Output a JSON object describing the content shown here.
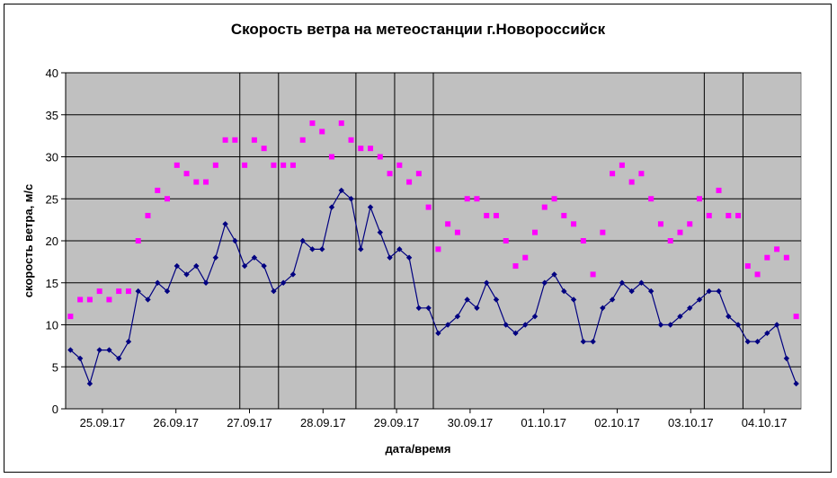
{
  "chart_data": {
    "type": "line",
    "title": "Скорость ветра на метеостанции г.Новороссийск",
    "xlabel": "дата/время",
    "ylabel": "скорость ветра, м/с",
    "ylim": [
      0,
      40
    ],
    "yticks": [
      "0",
      "5",
      "10",
      "15",
      "20",
      "25",
      "30",
      "35",
      "40"
    ],
    "xtick_labels": [
      "25.09.17",
      "26.09.17",
      "27.09.17",
      "28.09.17",
      "29.09.17",
      "30.09.17",
      "01.10.17",
      "02.10.17",
      "03.10.17",
      "04.10.17"
    ],
    "grid": true,
    "legend": "none",
    "colors": {
      "plot_background": "#c0c0c0",
      "series_line": "#000080",
      "series_gusts": "#ff00ff"
    },
    "series": [
      {
        "values": [
          7,
          6,
          3,
          7,
          7,
          6,
          8,
          14,
          13,
          15,
          14,
          17,
          16,
          17,
          15,
          18,
          22,
          20,
          17,
          18,
          17,
          14,
          15,
          16,
          20,
          19,
          19,
          24,
          26,
          25,
          19,
          24,
          21,
          18,
          19,
          18,
          12,
          12,
          9,
          10,
          11,
          13,
          12,
          15,
          13,
          10,
          9,
          10,
          11,
          15,
          16,
          14,
          13,
          8,
          8,
          12,
          13,
          15,
          14,
          15,
          14,
          10,
          10,
          11,
          12,
          13,
          14,
          14,
          11,
          10,
          8,
          8,
          9,
          10,
          6,
          3
        ]
      },
      {
        "values": [
          11,
          13,
          13,
          14,
          13,
          14,
          14,
          20,
          23,
          26,
          25,
          29,
          28,
          27,
          27,
          29,
          32,
          32,
          29,
          32,
          31,
          29,
          29,
          29,
          32,
          34,
          33,
          30,
          34,
          32,
          31,
          31,
          30,
          28,
          29,
          27,
          28,
          24,
          19,
          22,
          21,
          25,
          25,
          23,
          23,
          20,
          17,
          18,
          21,
          24,
          25,
          23,
          22,
          20,
          16,
          21,
          28,
          29,
          27,
          28,
          25,
          22,
          20,
          21,
          22,
          25,
          23,
          26,
          23,
          23,
          17,
          16,
          18,
          19,
          18,
          11
        ]
      }
    ]
  }
}
